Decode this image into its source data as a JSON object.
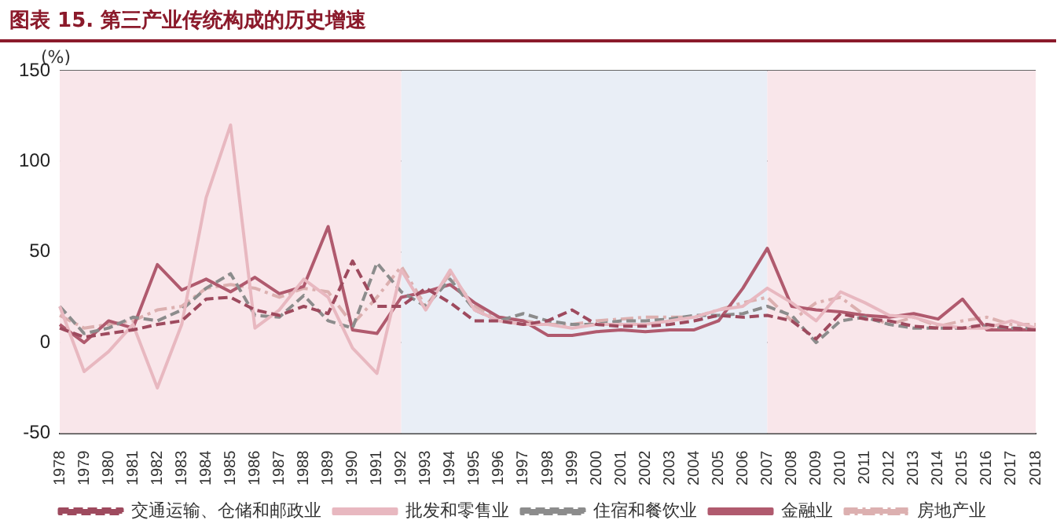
{
  "chart_data": {
    "type": "line",
    "title": "图表 15. 第三产业传统构成的历史增速",
    "ylabel": "(%)",
    "categories": [
      "1978",
      "1979",
      "1980",
      "1981",
      "1982",
      "1983",
      "1984",
      "1985",
      "1986",
      "1987",
      "1988",
      "1989",
      "1990",
      "1991",
      "1992",
      "1993",
      "1994",
      "1995",
      "1996",
      "1997",
      "1998",
      "1999",
      "2000",
      "2001",
      "2002",
      "2003",
      "2004",
      "2005",
      "2006",
      "2007",
      "2008",
      "2009",
      "2010",
      "2011",
      "2012",
      "2013",
      "2014",
      "2015",
      "2016",
      "2017",
      "2018"
    ],
    "ylim": [
      -50,
      150
    ],
    "yticks": [
      -50,
      0,
      50,
      100,
      150
    ],
    "grid": "y",
    "legend": "bottom",
    "marker": "none",
    "bands": [
      {
        "axis": "x",
        "from": "1978",
        "to": "1992",
        "color": "#f9e6ea"
      },
      {
        "axis": "x",
        "from": "1992",
        "to": "2007",
        "color": "#e9eef6"
      },
      {
        "axis": "x",
        "from": "2007",
        "to": "2018",
        "color": "#f9e6ea"
      }
    ],
    "series": [
      {
        "name": "交通运输、仓储和邮政业",
        "color": "#9e4a5e",
        "line_style": "dashed",
        "values": [
          8,
          3,
          5,
          7,
          10,
          12,
          24,
          25,
          18,
          15,
          20,
          16,
          45,
          20,
          20,
          30,
          22,
          12,
          12,
          10,
          12,
          18,
          10,
          9,
          9,
          10,
          12,
          15,
          14,
          15,
          12,
          2,
          16,
          13,
          12,
          9,
          8,
          8,
          10,
          8,
          7
        ]
      },
      {
        "name": "批发和零售业",
        "color": "#e8b8c0",
        "line_style": "solid",
        "values": [
          20,
          -16,
          -5,
          10,
          -25,
          10,
          80,
          120,
          8,
          18,
          35,
          25,
          -3,
          -17,
          40,
          18,
          40,
          18,
          12,
          10,
          10,
          8,
          10,
          10,
          10,
          12,
          14,
          18,
          20,
          30,
          22,
          12,
          28,
          22,
          15,
          14,
          10,
          8,
          8,
          12,
          8
        ]
      },
      {
        "name": "住宿和餐饮业",
        "color": "#8c8c8c",
        "line_style": "dashed",
        "values": [
          20,
          5,
          8,
          14,
          12,
          18,
          30,
          38,
          15,
          14,
          26,
          12,
          8,
          44,
          28,
          20,
          35,
          18,
          12,
          16,
          12,
          10,
          10,
          12,
          12,
          13,
          15,
          15,
          16,
          20,
          15,
          0,
          12,
          14,
          10,
          8,
          8,
          8,
          9,
          8,
          8
        ]
      },
      {
        "name": "金融业",
        "color": "#b05a6e",
        "line_style": "solid",
        "values": [
          10,
          0,
          12,
          8,
          43,
          29,
          35,
          28,
          36,
          27,
          31,
          64,
          7,
          5,
          25,
          28,
          32,
          22,
          14,
          12,
          4,
          4,
          6,
          7,
          6,
          7,
          7,
          12,
          30,
          52,
          20,
          18,
          17,
          15,
          14,
          16,
          13,
          24,
          7,
          7,
          7
        ]
      },
      {
        "name": "房地产业",
        "color": "#dcb0b0",
        "line_style": "dotted",
        "values": [
          15,
          8,
          10,
          12,
          18,
          20,
          30,
          32,
          30,
          25,
          30,
          28,
          10,
          25,
          42,
          20,
          38,
          20,
          14,
          12,
          10,
          10,
          12,
          13,
          14,
          14,
          14,
          18,
          22,
          25,
          12,
          22,
          25,
          15,
          10,
          14,
          9,
          12,
          14,
          10,
          10
        ]
      }
    ]
  }
}
